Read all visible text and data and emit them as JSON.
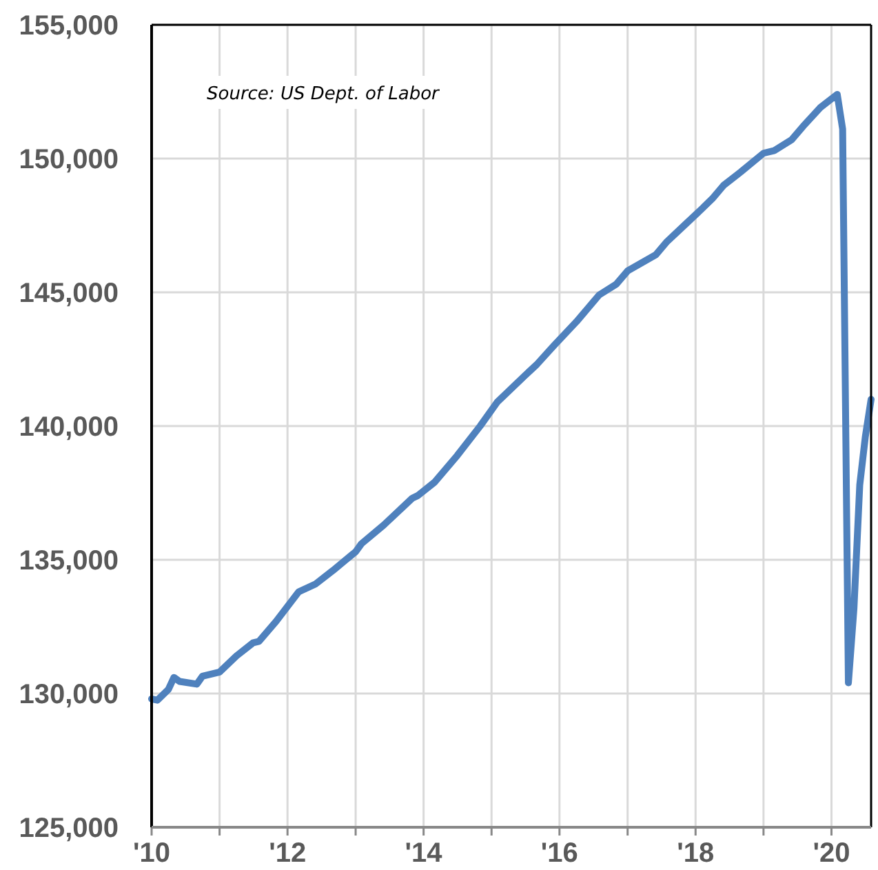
{
  "chart_data": {
    "type": "line",
    "x": [
      "2010-01",
      "2010-02",
      "2010-04",
      "2010-05",
      "2010-06",
      "2010-09",
      "2010-10",
      "2011-01",
      "2011-04",
      "2011-07",
      "2011-08",
      "2011-11",
      "2012-03",
      "2012-06",
      "2012-09",
      "2013-01",
      "2013-02",
      "2013-06",
      "2013-11",
      "2013-12",
      "2014-03",
      "2014-07",
      "2014-11",
      "2015-02",
      "2015-07",
      "2015-09",
      "2015-12",
      "2016-04",
      "2016-08",
      "2016-11",
      "2017-01",
      "2017-06",
      "2017-08",
      "2017-11",
      "2018-02",
      "2018-04",
      "2018-06",
      "2018-09",
      "2019-01",
      "2019-03",
      "2019-06",
      "2019-08",
      "2019-11",
      "2020-02",
      "2020-03",
      "2020-04",
      "2020-05",
      "2020-06",
      "2020-07",
      "2020-08"
    ],
    "series": [
      {
        "color": "#4f81bd",
        "values": [
          129800,
          129750,
          130150,
          130600,
          130450,
          130350,
          130650,
          130800,
          131400,
          131900,
          131950,
          132700,
          133800,
          134100,
          134600,
          135300,
          135600,
          136300,
          137300,
          137400,
          137900,
          138900,
          140000,
          140900,
          141900,
          142300,
          143000,
          143900,
          144900,
          145300,
          145800,
          146400,
          146900,
          147500,
          148100,
          148500,
          149000,
          149500,
          150200,
          150300,
          150700,
          151200,
          151900,
          152400,
          151100,
          130400,
          133200,
          137800,
          139600,
          141000
        ]
      }
    ],
    "xlim": [
      "2010-01",
      "2020-08"
    ],
    "ylim": [
      125000,
      155000
    ],
    "xticks": [
      {
        "value": "2010-01",
        "label": "'10"
      },
      {
        "value": "2011-01",
        "label": null
      },
      {
        "value": "2012-01",
        "label": "'12"
      },
      {
        "value": "2013-01",
        "label": null
      },
      {
        "value": "2014-01",
        "label": "'14"
      },
      {
        "value": "2015-01",
        "label": null
      },
      {
        "value": "2016-01",
        "label": "'16"
      },
      {
        "value": "2017-01",
        "label": null
      },
      {
        "value": "2018-01",
        "label": "'18"
      },
      {
        "value": "2019-01",
        "label": null
      },
      {
        "value": "2020-01",
        "label": "'20"
      }
    ],
    "yticks": [
      {
        "value": 125000,
        "label": "125,000"
      },
      {
        "value": 130000,
        "label": "130,000"
      },
      {
        "value": 135000,
        "label": "135,000"
      },
      {
        "value": 140000,
        "label": "140,000"
      },
      {
        "value": 145000,
        "label": "145,000"
      },
      {
        "value": 150000,
        "label": "150,000"
      },
      {
        "value": 155000,
        "label": "155,000"
      }
    ],
    "grid": true,
    "marker": "none",
    "line_style": "solid",
    "annotations": [
      "Source: US Dept. of Labor"
    ]
  }
}
